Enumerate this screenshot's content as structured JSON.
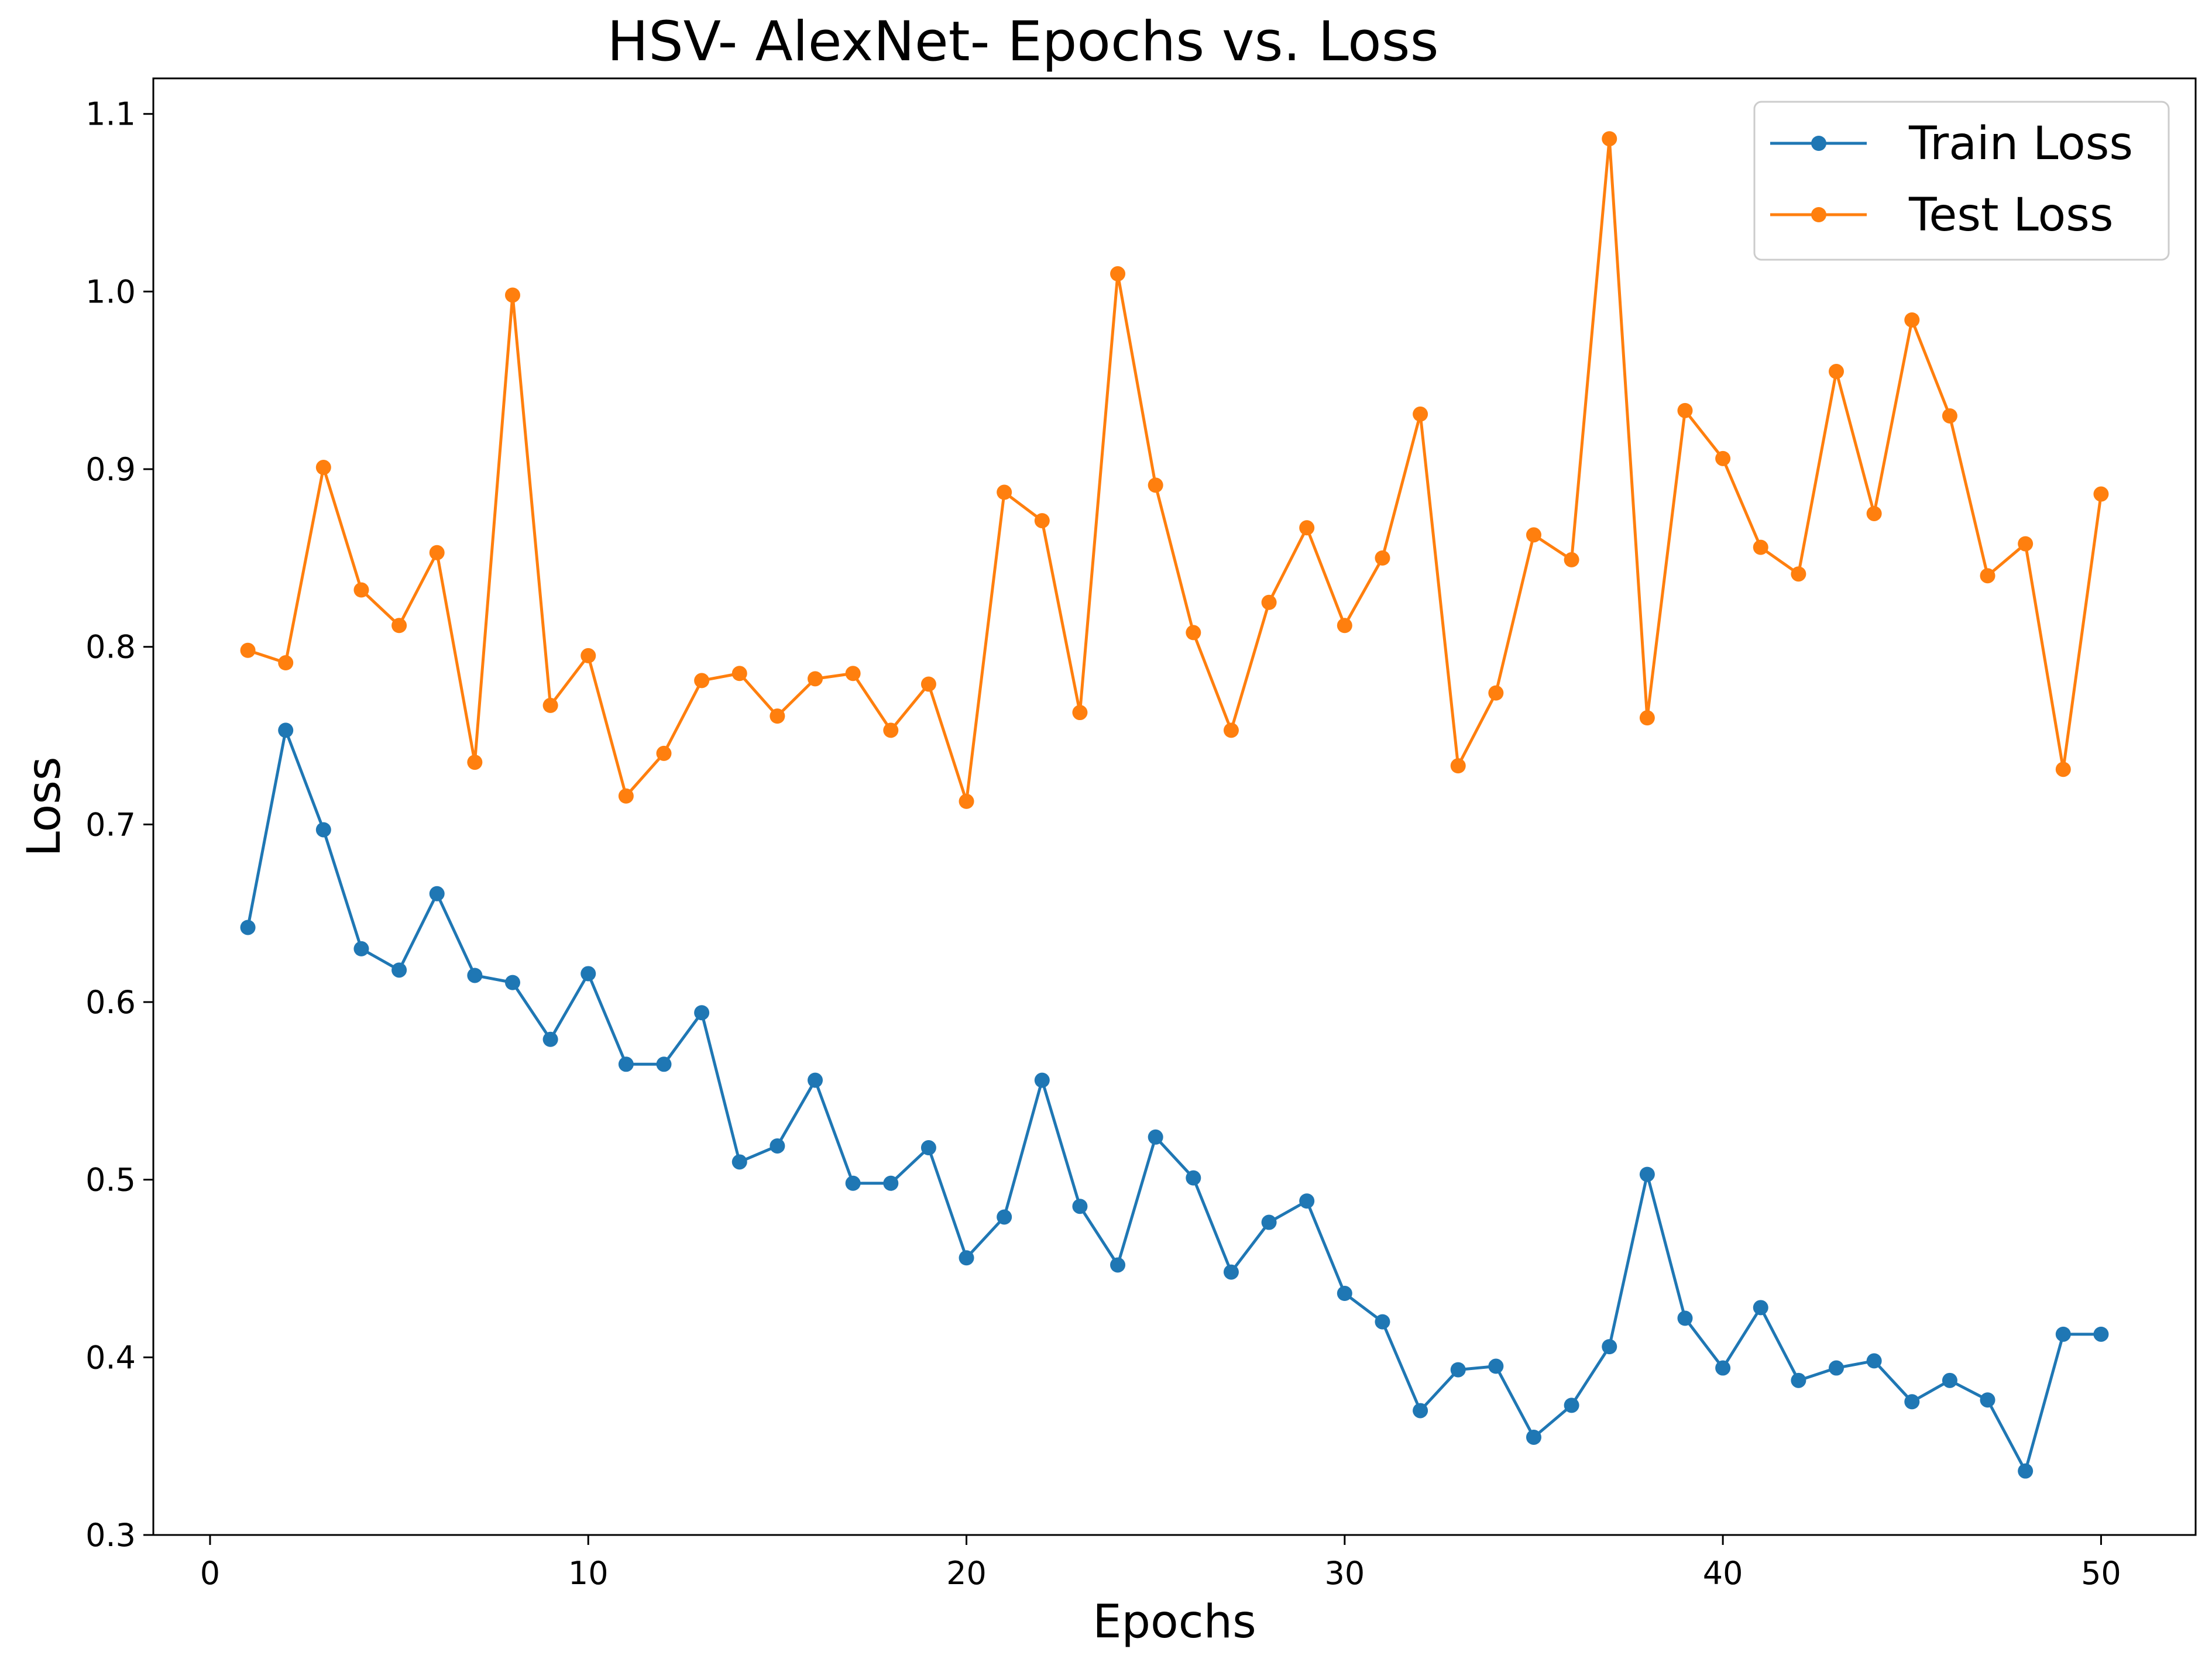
{
  "chart_data": {
    "type": "line",
    "title": "HSV- AlexNet- Epochs vs. Loss",
    "xlabel": "Epochs",
    "ylabel": "Loss",
    "xlim": [
      -1.5,
      52.5
    ],
    "ylim": [
      0.3,
      1.12
    ],
    "xticks": [
      0,
      10,
      20,
      30,
      40,
      50
    ],
    "yticks": [
      0.3,
      0.4,
      0.5,
      0.6,
      0.7,
      0.8,
      0.9,
      1.0,
      1.1
    ],
    "xtick_labels": [
      "0",
      "10",
      "20",
      "30",
      "40",
      "50"
    ],
    "ytick_labels": [
      "0.3",
      "0.4",
      "0.5",
      "0.6",
      "0.7",
      "0.8",
      "0.9",
      "1.0",
      "1.1"
    ],
    "grid": false,
    "legend_position": "top-right",
    "x": [
      1,
      2,
      3,
      4,
      5,
      6,
      7,
      8,
      9,
      10,
      11,
      12,
      13,
      14,
      15,
      16,
      17,
      18,
      19,
      20,
      21,
      22,
      23,
      24,
      25,
      26,
      27,
      28,
      29,
      30,
      31,
      32,
      33,
      34,
      35,
      36,
      37,
      38,
      39,
      40,
      41,
      42,
      43,
      44,
      45,
      46,
      47,
      48,
      49,
      50
    ],
    "series": [
      {
        "name": "Train Loss",
        "color": "#1f77b4",
        "values": [
          0.642,
          0.753,
          0.697,
          0.63,
          0.618,
          0.661,
          0.615,
          0.611,
          0.579,
          0.616,
          0.565,
          0.565,
          0.594,
          0.51,
          0.519,
          0.556,
          0.498,
          0.498,
          0.518,
          0.456,
          0.479,
          0.556,
          0.485,
          0.452,
          0.524,
          0.501,
          0.448,
          0.476,
          0.488,
          0.436,
          0.42,
          0.37,
          0.393,
          0.395,
          0.355,
          0.373,
          0.406,
          0.503,
          0.422,
          0.394,
          0.428,
          0.387,
          0.394,
          0.398,
          0.375,
          0.387,
          0.376,
          0.336,
          0.413,
          0.413
        ]
      },
      {
        "name": "Test Loss",
        "color": "#ff7f0e",
        "values": [
          0.798,
          0.791,
          0.901,
          0.832,
          0.812,
          0.853,
          0.735,
          0.998,
          0.767,
          0.795,
          0.716,
          0.74,
          0.781,
          0.785,
          0.761,
          0.782,
          0.785,
          0.753,
          0.779,
          0.713,
          0.887,
          0.871,
          0.763,
          1.01,
          0.891,
          0.808,
          0.753,
          0.825,
          0.867,
          0.812,
          0.85,
          0.931,
          0.733,
          0.774,
          0.863,
          0.849,
          1.086,
          0.76,
          0.933,
          0.906,
          0.856,
          0.841,
          0.955,
          0.875,
          0.984,
          0.93,
          0.84,
          0.858,
          0.731,
          0.886
        ]
      }
    ]
  }
}
